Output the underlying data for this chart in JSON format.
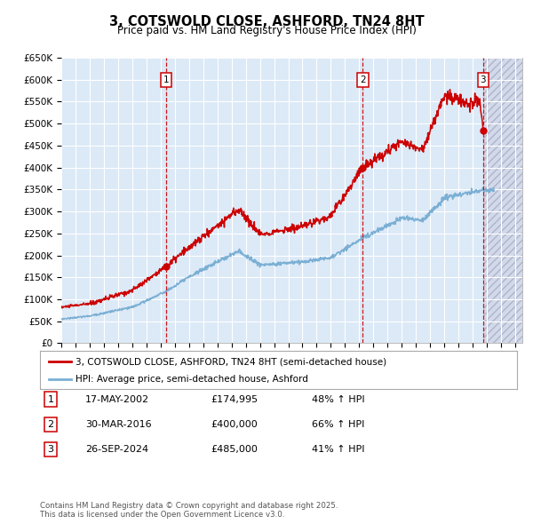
{
  "title": "3, COTSWOLD CLOSE, ASHFORD, TN24 8HT",
  "subtitle": "Price paid vs. HM Land Registry's House Price Index (HPI)",
  "ylim": [
    0,
    650000
  ],
  "yticks": [
    0,
    50000,
    100000,
    150000,
    200000,
    250000,
    300000,
    350000,
    400000,
    450000,
    500000,
    550000,
    600000,
    650000
  ],
  "ytick_labels": [
    "£0",
    "£50K",
    "£100K",
    "£150K",
    "£200K",
    "£250K",
    "£300K",
    "£350K",
    "£400K",
    "£450K",
    "£500K",
    "£550K",
    "£600K",
    "£650K"
  ],
  "xlim_start": 1995.0,
  "xlim_end": 2027.5,
  "fig_bg_color": "#ffffff",
  "background_color": "#dce9f7",
  "grid_color": "#ffffff",
  "line_red_color": "#cc0000",
  "line_blue_color": "#7bafd4",
  "transaction_dates": [
    2002.38,
    2016.25,
    2024.74
  ],
  "transaction_prices": [
    174995,
    400000,
    485000
  ],
  "transaction_labels": [
    "1",
    "2",
    "3"
  ],
  "transaction_date_strs": [
    "17-MAY-2002",
    "30-MAR-2016",
    "26-SEP-2024"
  ],
  "transaction_price_strs": [
    "£174,995",
    "£400,000",
    "£485,000"
  ],
  "transaction_hpi_strs": [
    "48% ↑ HPI",
    "66% ↑ HPI",
    "41% ↑ HPI"
  ],
  "legend_line1": "3, COTSWOLD CLOSE, ASHFORD, TN24 8HT (semi-detached house)",
  "legend_line2": "HPI: Average price, semi-detached house, Ashford",
  "footnote": "Contains HM Land Registry data © Crown copyright and database right 2025.\nThis data is licensed under the Open Government Licence v3.0.",
  "future_start": 2024.74,
  "hatch_fill_color": "#ccd0e0",
  "hatch_edge_color": "#9999bb"
}
